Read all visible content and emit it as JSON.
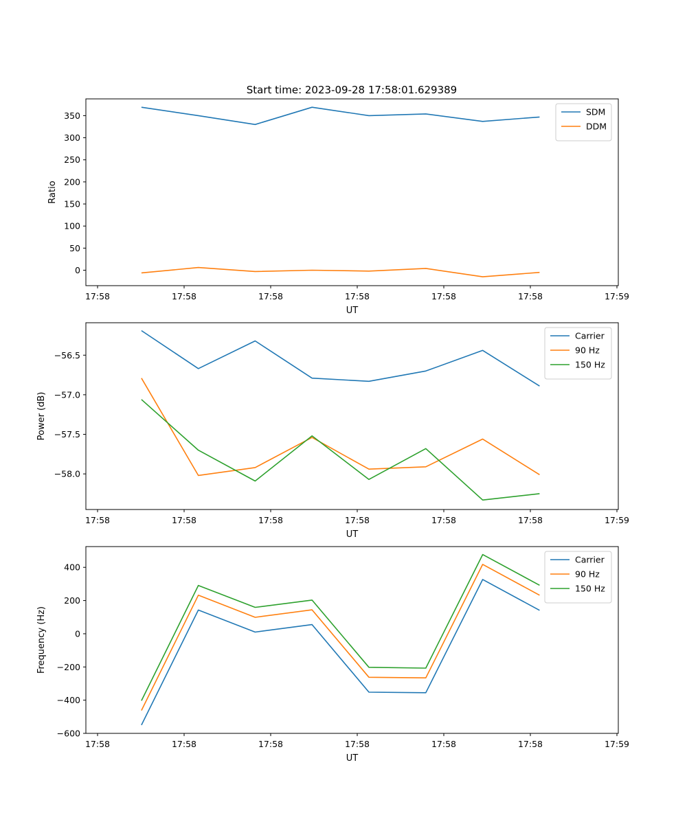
{
  "figure_title": "Start time: 2023-09-28 17:58:01.629389",
  "colors": {
    "c0": "#1f77b4",
    "c1": "#ff7f0e",
    "c2": "#2ca02c",
    "axis": "#000000",
    "legend_border": "#cccccc"
  },
  "chart_data": [
    {
      "type": "line",
      "title": "Start time: 2023-09-28 17:58:01.629389",
      "xlabel": "UT",
      "ylabel": "Ratio",
      "x_tick_labels": [
        "17:58",
        "17:58",
        "17:58",
        "17:58",
        "17:58",
        "17:58",
        "17:59"
      ],
      "x": [
        0.5,
        1.15,
        1.8,
        2.45,
        3.1,
        3.75,
        4.4,
        5.05
      ],
      "xlim": [
        -0.135,
        5.95
      ],
      "ylim": [
        -35,
        388
      ],
      "y_ticks": [
        0,
        50,
        100,
        150,
        200,
        250,
        300,
        350
      ],
      "y_tick_labels": [
        "0",
        "50",
        "100",
        "150",
        "200",
        "250",
        "300",
        "350"
      ],
      "legend": "top-right",
      "series": [
        {
          "name": "SDM",
          "color": "#1f77b4",
          "values": [
            369,
            350,
            330,
            369,
            350,
            354,
            337,
            347
          ]
        },
        {
          "name": "DDM",
          "color": "#ff7f0e",
          "values": [
            -6,
            6,
            -3,
            0,
            -2,
            4,
            -15,
            -5
          ]
        }
      ]
    },
    {
      "type": "line",
      "title": "",
      "xlabel": "UT",
      "ylabel": "Power (dB)",
      "x_tick_labels": [
        "17:58",
        "17:58",
        "17:58",
        "17:58",
        "17:58",
        "17:58",
        "17:59"
      ],
      "x": [
        0.5,
        1.15,
        1.8,
        2.45,
        3.1,
        3.75,
        4.4,
        5.05
      ],
      "xlim": [
        -0.135,
        5.95
      ],
      "ylim": [
        -58.45,
        -56.09
      ],
      "y_ticks": [
        -58.0,
        -57.5,
        -57.0,
        -56.5
      ],
      "y_tick_labels": [
        "−58.0",
        "−57.5",
        "−57.0",
        "−56.5"
      ],
      "legend": "top-right",
      "series": [
        {
          "name": "Carrier",
          "color": "#1f77b4",
          "values": [
            -56.19,
            -56.67,
            -56.32,
            -56.79,
            -56.83,
            -56.7,
            -56.44,
            -56.89
          ]
        },
        {
          "name": "90 Hz",
          "color": "#ff7f0e",
          "values": [
            -56.79,
            -58.02,
            -57.92,
            -57.54,
            -57.94,
            -57.91,
            -57.56,
            -58.01
          ]
        },
        {
          "name": "150 Hz",
          "color": "#2ca02c",
          "values": [
            -57.06,
            -57.7,
            -58.09,
            -57.52,
            -58.07,
            -57.68,
            -58.33,
            -58.25
          ]
        }
      ]
    },
    {
      "type": "line",
      "title": "",
      "xlabel": "UT",
      "ylabel": "Frequency (Hz)",
      "x_tick_labels": [
        "17:58",
        "17:58",
        "17:58",
        "17:58",
        "17:58",
        "17:58",
        "17:59"
      ],
      "x": [
        0.5,
        1.15,
        1.8,
        2.45,
        3.1,
        3.75,
        4.4,
        5.05
      ],
      "xlim": [
        -0.135,
        5.95
      ],
      "ylim": [
        -600,
        525
      ],
      "y_ticks": [
        -600,
        -400,
        -200,
        0,
        200,
        400
      ],
      "y_tick_labels": [
        "−600",
        "−400",
        "−200",
        "0",
        "200",
        "400"
      ],
      "legend": "top-right",
      "series": [
        {
          "name": "Carrier",
          "color": "#1f77b4",
          "values": [
            -550,
            143,
            10,
            55,
            -352,
            -355,
            327,
            141
          ]
        },
        {
          "name": "90 Hz",
          "color": "#ff7f0e",
          "values": [
            -462,
            232,
            99,
            144,
            -262,
            -266,
            418,
            232
          ]
        },
        {
          "name": "150 Hz",
          "color": "#2ca02c",
          "values": [
            -403,
            291,
            159,
            203,
            -202,
            -207,
            477,
            292
          ]
        }
      ]
    }
  ]
}
